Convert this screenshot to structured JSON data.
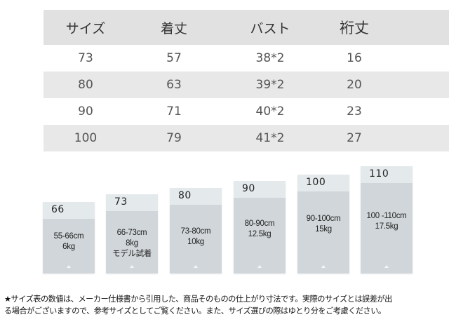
{
  "size_table": {
    "headers": [
      "サイズ",
      "着丈",
      "バスト",
      "裄丈"
    ],
    "rows": [
      [
        "73",
        "57",
        "38*2",
        "16"
      ],
      [
        "80",
        "63",
        "39*2",
        "20"
      ],
      [
        "90",
        "71",
        "40*2",
        "23"
      ],
      [
        "100",
        "79",
        "41*2",
        "27"
      ]
    ]
  },
  "size_bars": [
    {
      "size": "66",
      "height": "55-66cm",
      "weight": "6kg",
      "extra": ""
    },
    {
      "size": "73",
      "height": "66-73cm",
      "weight": "8kg",
      "extra": "モデル試着"
    },
    {
      "size": "80",
      "height": "73-80cm",
      "weight": "10kg",
      "extra": ""
    },
    {
      "size": "90",
      "height": "80-90cm",
      "weight": "12.5kg",
      "extra": ""
    },
    {
      "size": "100",
      "height": "90-100cm",
      "weight": "15kg",
      "extra": ""
    },
    {
      "size": "110",
      "height": "100 -110cm",
      "weight": "17.5kg",
      "extra": ""
    }
  ],
  "note": {
    "line1": "★サイズ表の数値は、メーカー仕様書から引用した、商品そのものの仕上がり寸法です。実際のサイズとは誤差が出",
    "line2": "る場合がございますので、参考サイズとしてご覧ください。また、サイズ選びの際はゆとり分をご考慮ください。"
  },
  "colors": {
    "header_bg": "#e1e1e1",
    "row_shade": "#e8e8e8",
    "bar_body": "#d0d6d9",
    "bar_cap": "#e4eaec"
  }
}
